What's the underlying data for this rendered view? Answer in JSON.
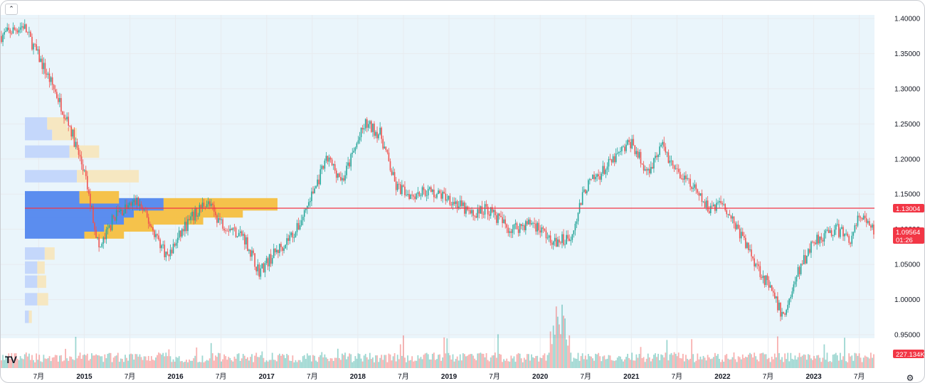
{
  "colors": {
    "up": "#26a69a",
    "down": "#ef5350",
    "wick": "#555555",
    "background_zone": "#eaf5fb",
    "grid": "#e8ebef",
    "profile_value_area_up": "#5b8def",
    "profile_value_area_down": "#f5c24b",
    "profile_up": "#c4d7fb",
    "profile_down": "#f6e7c1",
    "poc_line": "#f23645",
    "last_price_tag": "#f23645",
    "volume_tag": "#f23645"
  },
  "ui": {
    "collapse_icon": "chevron-up-icon",
    "logo_text": "TV",
    "settings_icon": "gear-icon"
  },
  "chart_data": {
    "type": "candlestick",
    "symbol": "",
    "y_axis": {
      "ticks": [
        "1.40000",
        "1.35000",
        "1.30000",
        "1.25000",
        "1.20000",
        "1.15000",
        "1.10000",
        "1.05000",
        "1.00000",
        "0.95000"
      ],
      "range": [
        0.945,
        1.405
      ]
    },
    "x_axis": {
      "ticks": [
        {
          "label": "7月",
          "date": "2014-07"
        },
        {
          "label": "2015",
          "date": "2015-01",
          "year": true
        },
        {
          "label": "7月",
          "date": "2015-07"
        },
        {
          "label": "2016",
          "date": "2016-01",
          "year": true
        },
        {
          "label": "7月",
          "date": "2016-07"
        },
        {
          "label": "2017",
          "date": "2017-01",
          "year": true
        },
        {
          "label": "7月",
          "date": "2017-07"
        },
        {
          "label": "2018",
          "date": "2018-01",
          "year": true
        },
        {
          "label": "7月",
          "date": "2018-07"
        },
        {
          "label": "2019",
          "date": "2019-01",
          "year": true
        },
        {
          "label": "7月",
          "date": "2019-07"
        },
        {
          "label": "2020",
          "date": "2020-01",
          "year": true
        },
        {
          "label": "7月",
          "date": "2020-07"
        },
        {
          "label": "2021",
          "date": "2021-01",
          "year": true
        },
        {
          "label": "7月",
          "date": "2021-07"
        },
        {
          "label": "2022",
          "date": "2022-01",
          "year": true
        },
        {
          "label": "7月",
          "date": "2022-07"
        },
        {
          "label": "2023",
          "date": "2023-01",
          "year": true
        },
        {
          "label": "7月",
          "date": "2023-07"
        }
      ],
      "range": [
        "2014-02",
        "2023-09"
      ]
    },
    "price_path": [
      [
        "2014-02",
        1.375
      ],
      [
        "2014-05",
        1.39
      ],
      [
        "2014-07",
        1.345
      ],
      [
        "2014-09",
        1.3
      ],
      [
        "2014-11",
        1.25
      ],
      [
        "2015-01",
        1.18
      ],
      [
        "2015-03",
        1.07
      ],
      [
        "2015-05",
        1.12
      ],
      [
        "2015-08",
        1.14
      ],
      [
        "2015-12",
        1.06
      ],
      [
        "2016-02",
        1.1
      ],
      [
        "2016-05",
        1.14
      ],
      [
        "2016-07",
        1.11
      ],
      [
        "2016-10",
        1.09
      ],
      [
        "2016-12",
        1.04
      ],
      [
        "2017-02",
        1.065
      ],
      [
        "2017-05",
        1.1
      ],
      [
        "2017-07",
        1.15
      ],
      [
        "2017-09",
        1.2
      ],
      [
        "2017-11",
        1.17
      ],
      [
        "2018-01",
        1.225
      ],
      [
        "2018-02",
        1.25
      ],
      [
        "2018-04",
        1.235
      ],
      [
        "2018-06",
        1.16
      ],
      [
        "2018-08",
        1.15
      ],
      [
        "2018-10",
        1.155
      ],
      [
        "2019-01",
        1.145
      ],
      [
        "2019-04",
        1.12
      ],
      [
        "2019-06",
        1.13
      ],
      [
        "2019-09",
        1.1
      ],
      [
        "2019-12",
        1.11
      ],
      [
        "2020-03",
        1.08
      ],
      [
        "2020-05",
        1.09
      ],
      [
        "2020-07",
        1.16
      ],
      [
        "2020-09",
        1.18
      ],
      [
        "2021-01",
        1.225
      ],
      [
        "2021-03",
        1.18
      ],
      [
        "2021-05",
        1.22
      ],
      [
        "2021-07",
        1.18
      ],
      [
        "2021-09",
        1.16
      ],
      [
        "2021-11",
        1.13
      ],
      [
        "2022-01",
        1.14
      ],
      [
        "2022-03",
        1.1
      ],
      [
        "2022-05",
        1.06
      ],
      [
        "2022-07",
        1.02
      ],
      [
        "2022-09",
        0.975
      ],
      [
        "2022-11",
        1.04
      ],
      [
        "2023-01",
        1.085
      ],
      [
        "2023-04",
        1.1
      ],
      [
        "2023-06",
        1.085
      ],
      [
        "2023-07",
        1.12
      ],
      [
        "2023-09",
        1.09564
      ]
    ],
    "volume_profile": [
      {
        "price": 1.095,
        "up": 1200,
        "down": 800,
        "value_area": true
      },
      {
        "price": 1.105,
        "up": 1600,
        "down": 1000,
        "value_area": true
      },
      {
        "price": 1.115,
        "up": 2000,
        "down": 1600,
        "value_area": true
      },
      {
        "price": 1.125,
        "up": 2200,
        "down": 2200,
        "value_area": true
      },
      {
        "price": 1.135,
        "up": 2800,
        "down": 2300,
        "value_area": true
      },
      {
        "price": 1.145,
        "up": 1100,
        "down": 800,
        "value_area": true
      },
      {
        "price": 1.175,
        "up": 1050,
        "down": 1250,
        "value_area": false
      },
      {
        "price": 1.21,
        "up": 900,
        "down": 600,
        "value_area": false
      },
      {
        "price": 1.235,
        "up": 550,
        "down": 500,
        "value_area": false
      },
      {
        "price": 1.25,
        "up": 450,
        "down": 400,
        "value_area": false
      },
      {
        "price": 1.065,
        "up": 400,
        "down": 200,
        "value_area": false
      },
      {
        "price": 1.045,
        "up": 250,
        "down": 150,
        "value_area": false
      },
      {
        "price": 1.025,
        "up": 250,
        "down": 180,
        "value_area": false
      },
      {
        "price": 1.0,
        "up": 250,
        "down": 220,
        "value_area": false
      },
      {
        "price": 0.975,
        "up": 80,
        "down": 60,
        "value_area": false
      }
    ],
    "poc_price": 1.13004,
    "last_price": "1.09564",
    "countdown": "01:26",
    "poc_label": "1.13004",
    "volume_label": "227.134K"
  }
}
